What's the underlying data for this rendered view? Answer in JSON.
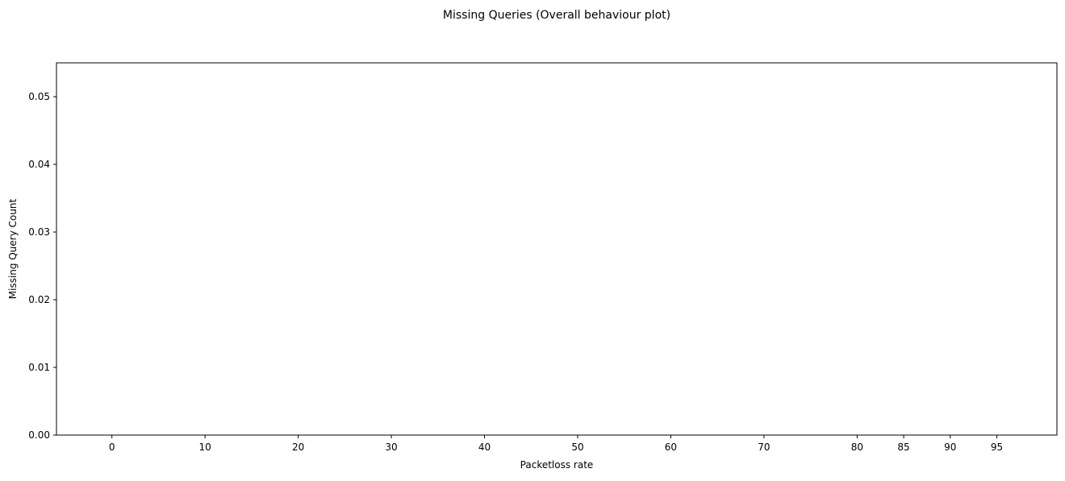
{
  "chart_data": {
    "type": "bar",
    "title": "Missing Queries (Overall behaviour plot)",
    "xlabel": "Packetloss rate",
    "ylabel": "Missing Query Count",
    "categories": [
      "0",
      "10",
      "20",
      "30",
      "40",
      "50",
      "60",
      "70",
      "80",
      "85",
      "90",
      "95"
    ],
    "x": [
      0,
      10,
      20,
      30,
      40,
      50,
      60,
      70,
      80,
      85,
      90,
      95
    ],
    "values": [
      0,
      0,
      0,
      0,
      0,
      0,
      0,
      0,
      0,
      0,
      0,
      0
    ],
    "yticks": [
      "0.00",
      "0.01",
      "0.02",
      "0.03",
      "0.04",
      "0.05"
    ],
    "ylim": [
      0,
      0.055
    ],
    "xlim": [
      -5.95,
      101.45
    ],
    "grid": false,
    "colors": {
      "bar": "#1f77b4",
      "axes": "#000000",
      "background": "#ffffff"
    }
  }
}
